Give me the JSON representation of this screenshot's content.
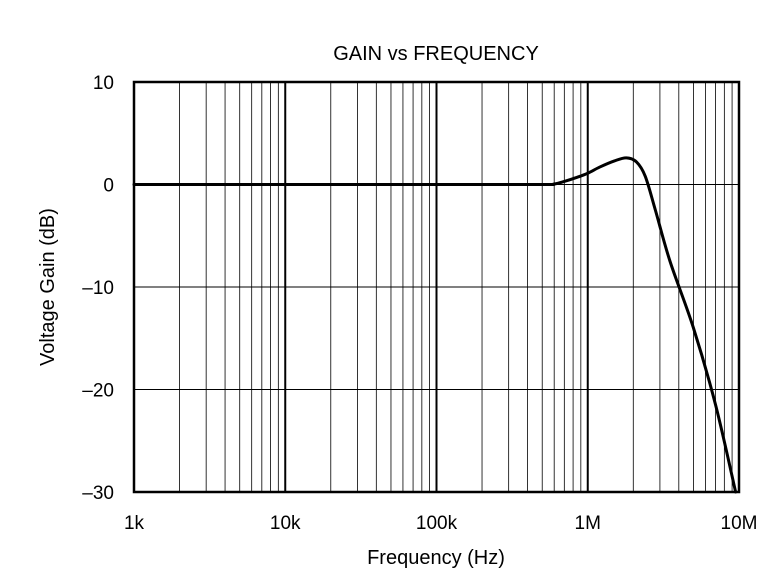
{
  "chart_data": {
    "type": "line",
    "title": "GAIN vs FREQUENCY",
    "xlabel": "Frequency (Hz)",
    "ylabel": "Voltage Gain (dB)",
    "xscale": "log",
    "xlim": [
      1000,
      10000000
    ],
    "ylim": [
      -30,
      10
    ],
    "grid": true,
    "xticks": [
      {
        "value": 1000,
        "label": "1k"
      },
      {
        "value": 10000,
        "label": "10k"
      },
      {
        "value": 100000,
        "label": "100k"
      },
      {
        "value": 1000000,
        "label": "1M"
      },
      {
        "value": 10000000,
        "label": "10M"
      }
    ],
    "yticks": [
      {
        "value": 10,
        "label": "10"
      },
      {
        "value": 0,
        "label": "0"
      },
      {
        "value": -10,
        "label": "–10"
      },
      {
        "value": -20,
        "label": "–20"
      },
      {
        "value": -30,
        "label": "–30"
      }
    ],
    "series": [
      {
        "color": "#000000",
        "x": [
          1000,
          10000,
          100000,
          500000,
          600000,
          700000,
          850000,
          1000000,
          1200000,
          1500000,
          1800000,
          2100000,
          2400000,
          2800000,
          3500000,
          5000000,
          7000000,
          9500000
        ],
        "y": [
          0,
          0,
          0,
          0,
          0.05,
          0.3,
          0.7,
          1.1,
          1.7,
          2.3,
          2.6,
          2.2,
          0.8,
          -2.5,
          -7.5,
          -14.0,
          -21.5,
          -30.0
        ]
      }
    ]
  }
}
